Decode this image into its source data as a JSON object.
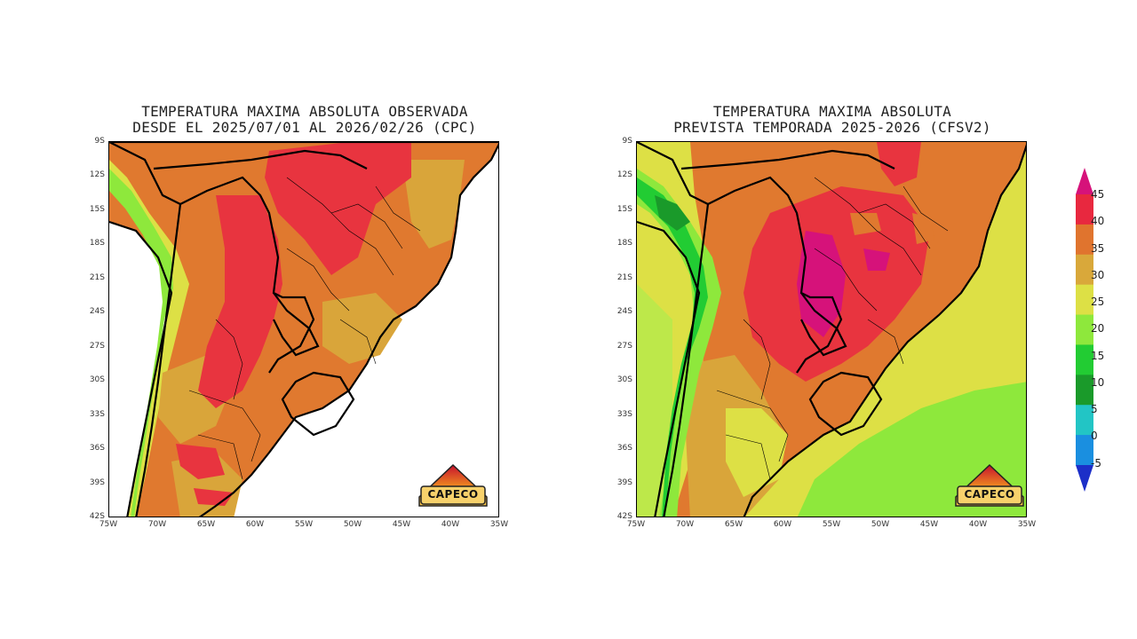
{
  "left_panel": {
    "title_line1": "TEMPERATURA MAXIMA ABSOLUTA OBSERVADA",
    "title_line2": "DESDE EL 2025/07/01 AL 2026/02/26 (CPC)"
  },
  "right_panel": {
    "title_line1": "TEMPERATURA MAXIMA ABSOLUTA",
    "title_line2": "PREVISTA TEMPORADA 2025-2026 (CFSV2)"
  },
  "lat_ticks": [
    "9S",
    "12S",
    "15S",
    "18S",
    "21S",
    "24S",
    "27S",
    "30S",
    "33S",
    "36S",
    "39S",
    "42S"
  ],
  "lon_ticks": [
    "75W",
    "70W",
    "65W",
    "60W",
    "55W",
    "50W",
    "45W",
    "40W",
    "35W"
  ],
  "logo_text": "CAPECO",
  "colorbar": {
    "labels": [
      "45",
      "40",
      "35",
      "30",
      "25",
      "20",
      "15",
      "10",
      "5",
      "0",
      "-5"
    ],
    "colors": [
      "#d6127a",
      "#e8283f",
      "#e0742e",
      "#d9a83a",
      "#dde045",
      "#8ee83c",
      "#22cc33",
      "#1a9a2a",
      "#22c5c5",
      "#1a8fe0",
      "#1c2fc8"
    ]
  },
  "colors": {
    "ocean": "#ffffff",
    "hot_red": "#e8343f",
    "orange": "#e0792f",
    "tan": "#d9a53a",
    "yellow": "#dde045",
    "light_green": "#8ee83c",
    "green": "#22cc33",
    "magenta": "#d6127a"
  }
}
